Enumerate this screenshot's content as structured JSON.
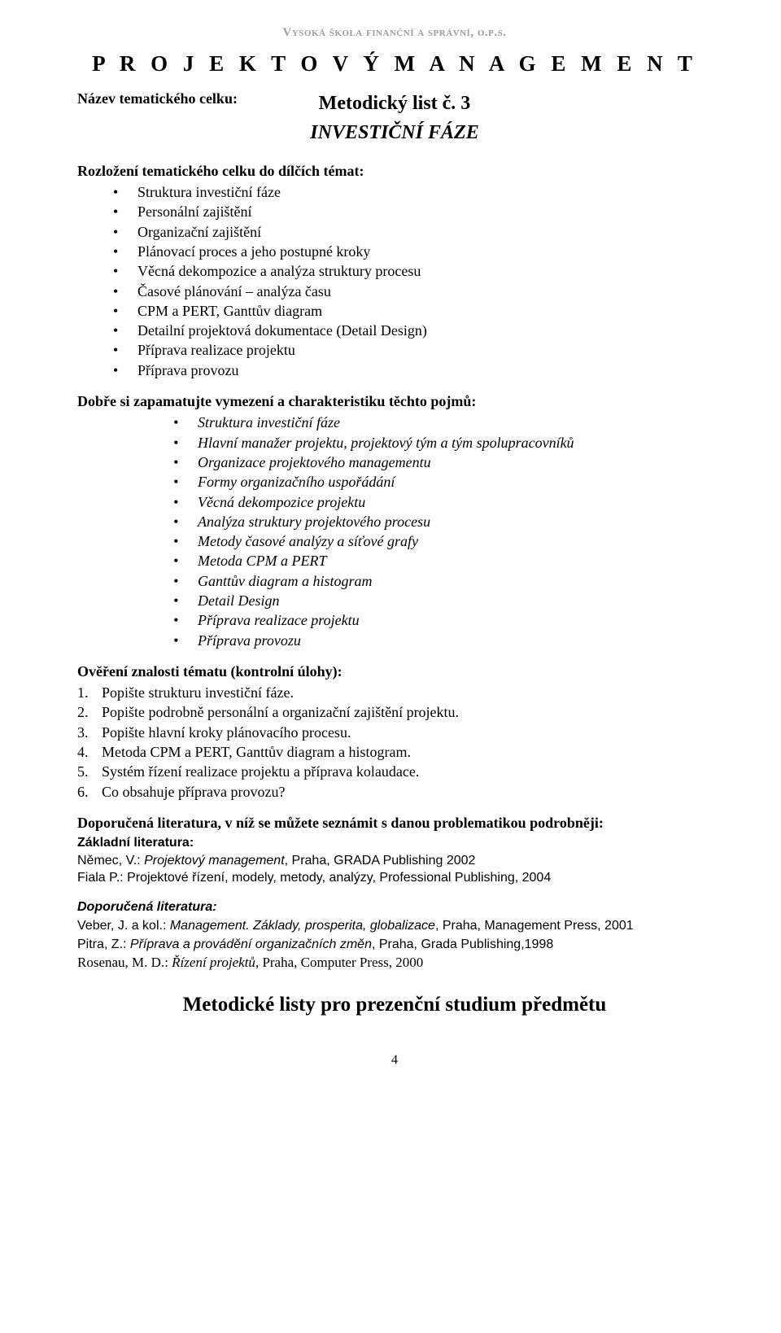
{
  "header_small": "Vysoká škola finanční a správní, o.p.s.",
  "main_title": "P R O J E K T O V Ý   M A N A G E M E N T",
  "nazev_label": "Název tematického celku:",
  "metod_label": "Metodický list č. 3",
  "invest_title": "INVESTIČNÍ FÁZE",
  "sec1_heading": "Rozložení tematického celku do dílčích témat:",
  "sec1_items": [
    "Struktura investiční fáze",
    "Personální zajištění",
    "Organizační zajištění",
    "Plánovací proces a jeho postupné kroky",
    "Věcná dekompozice a analýza struktury procesu",
    "Časové plánování – analýza času",
    "CPM a PERT, Ganttův diagram",
    "Detailní projektová dokumentace (Detail Design)",
    "Příprava realizace projektu",
    "Příprava provozu"
  ],
  "sec2_heading": "Dobře si zapamatujte vymezení  a charakteristiku těchto pojmů:",
  "sec2_items": [
    "Struktura investiční fáze",
    "Hlavní manažer projektu, projektový tým a tým spolupracovníků",
    "Organizace projektového managementu",
    "Formy organizačního uspořádání",
    "Věcná dekompozice projektu",
    "Analýza struktury projektového procesu",
    "Metody časové analýzy a síťové grafy",
    "Metoda CPM a PERT",
    "Ganttův diagram a histogram",
    "Detail Design",
    "Příprava realizace projektu",
    "Příprava provozu"
  ],
  "sec3_heading": "Ověření znalosti tématu (kontrolní úlohy):",
  "sec3_items": [
    "Popište strukturu investiční fáze.",
    "Popište podrobně personální a organizační zajištění projektu.",
    "Popište hlavní kroky plánovacího procesu.",
    "Metoda CPM a PERT, Ganttův diagram a histogram.",
    "Systém řízení realizace projektu a příprava kolaudace.",
    "Co obsahuje příprava provozu?"
  ],
  "sec4_heading": "Doporučená literatura, v níž se můžete seznámit s danou problematikou podrobněji:",
  "lit_base_label": "Základní literatura:",
  "lit1": {
    "a": "Němec, V.: ",
    "i": "Projektový management",
    "b": ", Praha, GRADA Publishing 2002"
  },
  "lit2": {
    "a": "Fiala P.: Projektové řízení, modely, metody, analýzy, Professional Publishing, 2004"
  },
  "lit_reco_label": "Doporučená literatura:",
  "lit3": {
    "a": "Veber, J. a kol.: ",
    "i": "Management. Základy, prosperita, globalizace",
    "b": ", Praha, Management Press, 2001"
  },
  "lit4": {
    "a": "Pitra, Z.: ",
    "i": "Příprava a provádění organizačních změn",
    "b": ", Praha, Grada Publishing,1998"
  },
  "lit5": {
    "a": "Rosenau, M. D.: ",
    "i": "Řízení projektů",
    "b": ", Praha, Computer Press, 2000"
  },
  "footer_title": "Metodické listy pro prezenční studium předmětu",
  "page_num": "4"
}
